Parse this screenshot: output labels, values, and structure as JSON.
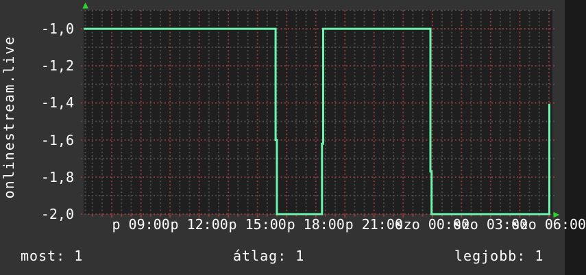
{
  "colors": {
    "background": "#333333",
    "plot_background": "#1f1f1f",
    "grid_minor": "#4c4c4c",
    "grid_major": "#8f3e3e",
    "series_line": "#6cf3ac",
    "axis_arrow": "#2ed22e",
    "text": "#ffffff"
  },
  "chart_data": {
    "type": "line",
    "vertical_label": "onlinestream.live",
    "x_axis": {
      "unit": "hours-since-friday-00:00",
      "range_hours": [
        6.05,
        30.18
      ],
      "minor_step_h": 0.5,
      "first_minor_h": 6.5,
      "major_step_h": 1.5,
      "first_major_h": 7.5,
      "tick_labels": [
        {
          "hour": 9,
          "label": "p 09:00"
        },
        {
          "hour": 12,
          "label": "p 12:00"
        },
        {
          "hour": 15,
          "label": "p 15:00"
        },
        {
          "hour": 18,
          "label": "p 18:00"
        },
        {
          "hour": 21,
          "label": "p 21:00"
        },
        {
          "hour": 24,
          "label": "szo 00:00"
        },
        {
          "hour": 27,
          "label": "szo 03:00"
        },
        {
          "hour": 30,
          "label": "szo 06:00"
        }
      ],
      "grid": "dotted"
    },
    "y_axis": {
      "range": [
        -2.0,
        -0.9
      ],
      "minor_step": 0.1,
      "major_step": 0.2,
      "tick_labels": [
        {
          "value": -1.0,
          "label": "-1,0"
        },
        {
          "value": -1.2,
          "label": "-1,2"
        },
        {
          "value": -1.4,
          "label": "-1,4"
        },
        {
          "value": -1.6,
          "label": "-1,6"
        },
        {
          "value": -1.8,
          "label": "-1,8"
        },
        {
          "value": -2.0,
          "label": "-2,0"
        }
      ],
      "grid": "dotted"
    },
    "series": [
      {
        "name": "onlinestream.live",
        "color": "#6cf3ac",
        "points": [
          [
            6.05,
            -1.0
          ],
          [
            15.93,
            -1.0
          ],
          [
            15.93,
            -1.6
          ],
          [
            16.0,
            -1.6
          ],
          [
            16.0,
            -2.0
          ],
          [
            18.32,
            -2.0
          ],
          [
            18.32,
            -1.62
          ],
          [
            18.38,
            -1.62
          ],
          [
            18.38,
            -1.0
          ],
          [
            23.9,
            -1.0
          ],
          [
            23.9,
            -1.77
          ],
          [
            23.96,
            -1.77
          ],
          [
            23.96,
            -2.0
          ],
          [
            30.02,
            -2.0
          ],
          [
            30.02,
            -1.41
          ],
          [
            30.07,
            -1.41
          ]
        ]
      }
    ],
    "legend": {
      "most": 1,
      "atlag": 1,
      "legjobb": 1
    }
  },
  "footer": {
    "most": "most: 1",
    "atlag": "átlag: 1",
    "legjobb": "legjobb: 1"
  }
}
